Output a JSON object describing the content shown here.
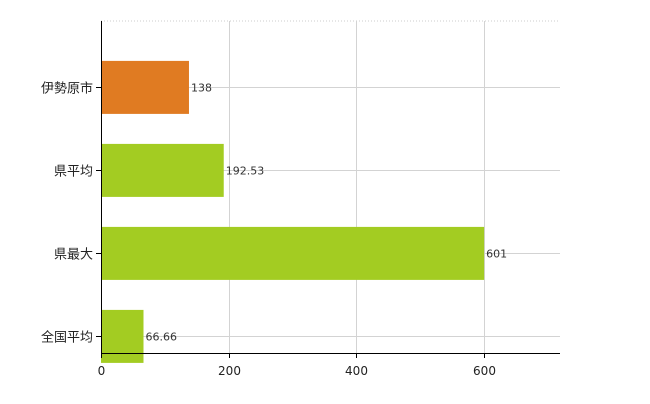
{
  "chart_data": {
    "type": "bar",
    "orientation": "horizontal",
    "categories": [
      "伊勢原市",
      "県平均",
      "県最大",
      "全国平均"
    ],
    "values": [
      138,
      192.53,
      601,
      66.66
    ],
    "value_labels": [
      "138",
      "192.53",
      "601",
      "66.66"
    ],
    "colors": [
      "#e07b22",
      "#a3cc22",
      "#a3cc22",
      "#a3cc22"
    ],
    "xlim": [
      0,
      720
    ],
    "xticks": [
      0,
      200,
      400,
      600
    ],
    "xtick_labels": [
      "0",
      "200",
      "400",
      "600"
    ],
    "grid": true,
    "grid_color": "#d3d3d3",
    "title": "",
    "xlabel": "",
    "ylabel": ""
  }
}
